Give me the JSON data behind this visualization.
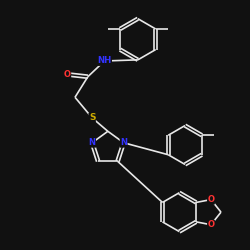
{
  "background_color": "#111111",
  "bond_color": "#e8e8e8",
  "atom_colors": {
    "N": "#3333ff",
    "O": "#ff3333",
    "S": "#ccaa00",
    "C": "#e8e8e8"
  },
  "bond_width": 1.2,
  "font_size_atom": 6.5,
  "title": ""
}
